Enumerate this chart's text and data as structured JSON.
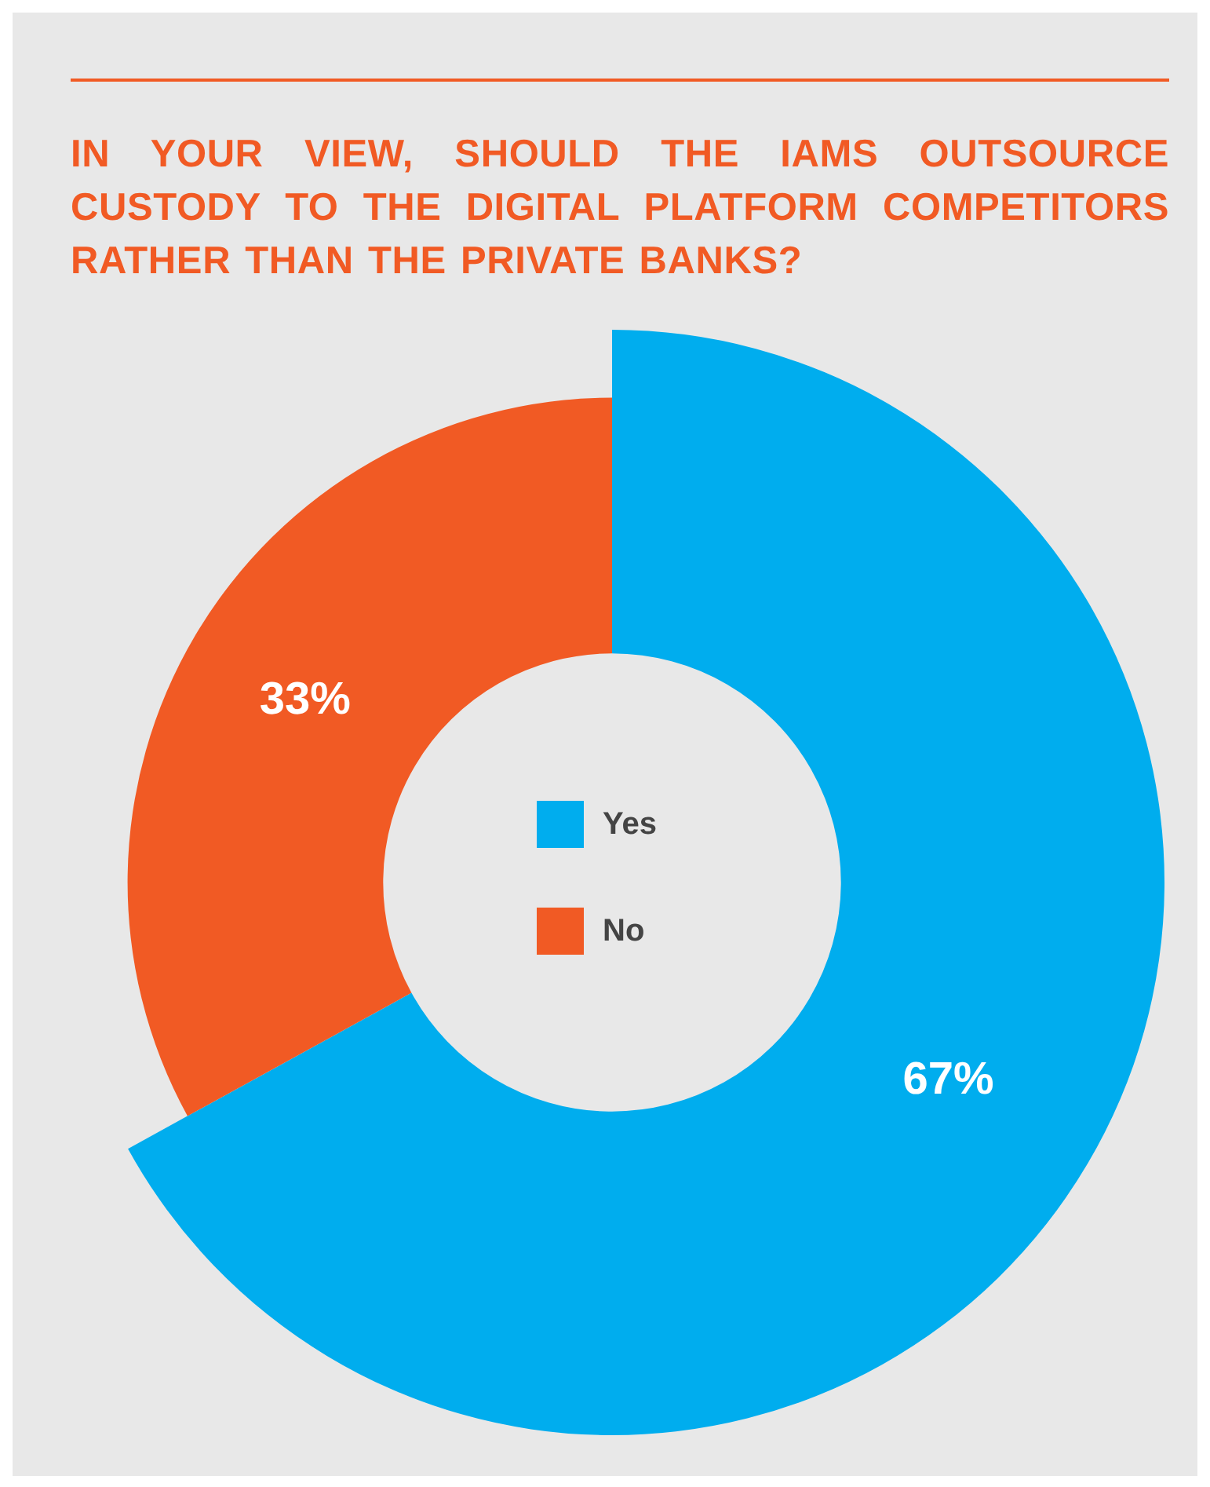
{
  "chart_data": {
    "type": "donut",
    "title": "IN YOUR VIEW, SHOULD THE IAMS OUTSOURCE CUSTODY TO THE DIGITAL PLATFORM COMPETITORS RATHER THAN THE PRIVATE BANKS?",
    "categories": [
      "Yes",
      "No"
    ],
    "values": [
      67,
      33
    ],
    "colors": [
      "#00adee",
      "#f15a24"
    ],
    "value_labels": [
      "67%",
      "33%"
    ],
    "legend": "center"
  }
}
